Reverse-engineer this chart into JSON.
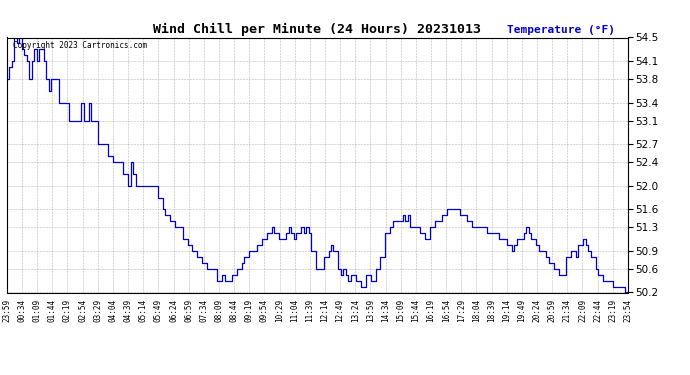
{
  "title": "Wind Chill per Minute (24 Hours) 20231013",
  "ylabel": "Temperature (°F)",
  "background_color": "#ffffff",
  "line_color": "#0000cc",
  "grid_color": "#888888",
  "copyright_text": "Copyright 2023 Cartronics.com",
  "ylabel_color": "#0000cc",
  "ylim": [
    50.2,
    54.5
  ],
  "yticks": [
    50.2,
    50.6,
    50.9,
    51.3,
    51.6,
    52.0,
    52.4,
    52.7,
    53.1,
    53.4,
    53.8,
    54.1,
    54.5
  ],
  "xtick_labels": [
    "23:59",
    "00:34",
    "01:09",
    "01:44",
    "02:19",
    "02:54",
    "03:29",
    "04:04",
    "04:39",
    "05:14",
    "05:49",
    "06:24",
    "06:59",
    "07:34",
    "08:09",
    "08:44",
    "09:19",
    "09:54",
    "10:29",
    "11:04",
    "11:39",
    "12:14",
    "12:49",
    "13:24",
    "13:59",
    "14:34",
    "15:09",
    "15:44",
    "16:19",
    "16:54",
    "17:29",
    "18:04",
    "18:39",
    "19:14",
    "19:49",
    "20:24",
    "20:59",
    "21:34",
    "22:09",
    "22:44",
    "23:19",
    "23:54"
  ],
  "data_y": [
    53.8,
    54.0,
    54.1,
    54.5,
    54.4,
    54.5,
    54.3,
    54.2,
    54.1,
    53.8,
    54.1,
    54.3,
    54.1,
    54.3,
    54.3,
    54.1,
    53.8,
    53.6,
    53.8,
    53.8,
    53.8,
    53.4,
    53.4,
    53.4,
    53.4,
    53.1,
    53.1,
    53.1,
    53.1,
    53.1,
    53.4,
    53.1,
    53.1,
    53.4,
    53.1,
    53.1,
    53.1,
    52.7,
    52.7,
    52.7,
    52.7,
    52.5,
    52.5,
    52.4,
    52.4,
    52.4,
    52.4,
    52.2,
    52.2,
    52.0,
    52.4,
    52.2,
    52.0,
    52.0,
    52.0,
    52.0,
    52.0,
    52.0,
    52.0,
    52.0,
    52.0,
    51.8,
    51.8,
    51.6,
    51.5,
    51.5,
    51.4,
    51.4,
    51.3,
    51.3,
    51.3,
    51.1,
    51.1,
    51.0,
    51.0,
    50.9,
    50.9,
    50.8,
    50.8,
    50.7,
    50.7,
    50.6,
    50.6,
    50.6,
    50.6,
    50.4,
    50.4,
    50.5,
    50.4,
    50.4,
    50.4,
    50.5,
    50.5,
    50.6,
    50.6,
    50.7,
    50.8,
    50.8,
    50.9,
    50.9,
    50.9,
    51.0,
    51.0,
    51.1,
    51.1,
    51.2,
    51.2,
    51.3,
    51.2,
    51.2,
    51.1,
    51.1,
    51.1,
    51.2,
    51.3,
    51.2,
    51.1,
    51.2,
    51.2,
    51.3,
    51.2,
    51.3,
    51.2,
    50.9,
    50.9,
    50.6,
    50.6,
    50.6,
    50.8,
    50.8,
    50.9,
    51.0,
    50.9,
    50.9,
    50.6,
    50.5,
    50.6,
    50.5,
    50.4,
    50.5,
    50.5,
    50.4,
    50.4,
    50.3,
    50.3,
    50.5,
    50.5,
    50.4,
    50.4,
    50.6,
    50.6,
    50.8,
    50.8,
    51.2,
    51.2,
    51.3,
    51.4,
    51.4,
    51.4,
    51.4,
    51.5,
    51.4,
    51.5,
    51.3,
    51.3,
    51.3,
    51.3,
    51.2,
    51.2,
    51.1,
    51.1,
    51.3,
    51.3,
    51.4,
    51.4,
    51.4,
    51.5,
    51.5,
    51.6,
    51.6,
    51.6,
    51.6,
    51.6,
    51.5,
    51.5,
    51.5,
    51.4,
    51.4,
    51.3,
    51.3,
    51.3,
    51.3,
    51.3,
    51.3,
    51.2,
    51.2,
    51.2,
    51.2,
    51.2,
    51.1,
    51.1,
    51.1,
    51.0,
    51.0,
    50.9,
    51.0,
    51.1,
    51.1,
    51.1,
    51.2,
    51.3,
    51.2,
    51.1,
    51.1,
    51.0,
    50.9,
    50.9,
    50.9,
    50.8,
    50.7,
    50.7,
    50.6,
    50.6,
    50.5,
    50.5,
    50.5,
    50.8,
    50.8,
    50.9,
    50.9,
    50.8,
    51.0,
    51.0,
    51.1,
    51.0,
    50.9,
    50.8,
    50.8,
    50.6,
    50.5,
    50.5,
    50.4,
    50.4,
    50.4,
    50.4,
    50.3,
    50.3,
    50.3,
    50.3,
    50.3,
    50.2,
    50.2
  ]
}
